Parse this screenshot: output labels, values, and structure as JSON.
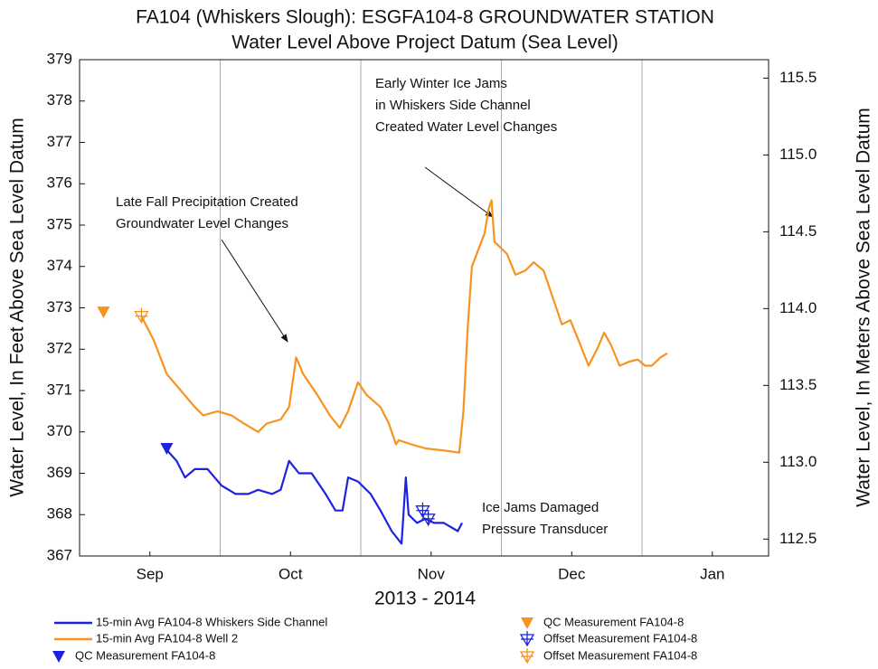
{
  "chart_data": {
    "type": "line",
    "title": "FA104 (Whiskers Slough): ESGFA104-8 GROUNDWATER STATION",
    "subtitle": "Water Level Above Project Datum (Sea Level)",
    "x_label": "2013 - 2014",
    "y_label": "Water Level, In Feet Above Sea Level Datum",
    "y2_label": "Water Level, In Meters Above Sea Level Datum",
    "xlim": [
      0,
      4.9
    ],
    "xticks": [
      {
        "value": 0.5,
        "label": "Sep"
      },
      {
        "value": 1.5,
        "label": "Oct"
      },
      {
        "value": 2.5,
        "label": "Nov"
      },
      {
        "value": 3.5,
        "label": "Dec"
      },
      {
        "value": 4.5,
        "label": "Jan"
      }
    ],
    "xgrid": [
      1,
      2,
      3,
      4
    ],
    "ylim": [
      367,
      379
    ],
    "yticks": [
      367,
      368,
      369,
      370,
      371,
      372,
      373,
      374,
      375,
      376,
      377,
      378,
      379
    ],
    "y2lim": [
      112.39,
      115.62
    ],
    "y2ticks": [
      {
        "value": 112.5,
        "label": "112.5"
      },
      {
        "value": 113.0,
        "label": "113.0"
      },
      {
        "value": 113.5,
        "label": "113.5"
      },
      {
        "value": 114.0,
        "label": "114.0"
      },
      {
        "value": 114.5,
        "label": "114.5"
      },
      {
        "value": 115.0,
        "label": "115.0"
      },
      {
        "value": 115.5,
        "label": "115.5"
      }
    ],
    "series": [
      {
        "name": "15-min Avg FA104-8 Whiskers Side Channel",
        "color": "#1c22e0",
        "marker": "line",
        "x": [
          0.61,
          0.69,
          0.75,
          0.82,
          0.91,
          1.01,
          1.11,
          1.2,
          1.27,
          1.37,
          1.43,
          1.49,
          1.56,
          1.65,
          1.75,
          1.82,
          1.87,
          1.91,
          1.98,
          2.07,
          2.14,
          2.22,
          2.29,
          2.32,
          2.34,
          2.4,
          2.46,
          2.52,
          2.59,
          2.69,
          2.72
        ],
        "values": [
          369.6,
          369.3,
          368.9,
          369.1,
          369.1,
          368.7,
          368.5,
          368.5,
          368.6,
          368.5,
          368.6,
          369.3,
          369.0,
          369.0,
          368.5,
          368.1,
          368.1,
          368.9,
          368.8,
          368.5,
          368.1,
          367.6,
          367.3,
          368.9,
          368.0,
          367.8,
          367.9,
          367.8,
          367.8,
          367.6,
          367.8
        ]
      },
      {
        "name": "15-min Avg FA104-8 Well 2",
        "color": "#f7931e",
        "marker": "line",
        "x": [
          0.44,
          0.53,
          0.62,
          0.72,
          0.82,
          0.88,
          0.98,
          1.08,
          1.17,
          1.27,
          1.33,
          1.43,
          1.49,
          1.54,
          1.59,
          1.69,
          1.78,
          1.85,
          1.91,
          1.98,
          2.04,
          2.14,
          2.2,
          2.25,
          2.27,
          2.36,
          2.46,
          2.59,
          2.7,
          2.73,
          2.76,
          2.79,
          2.88,
          2.91,
          2.93,
          2.95,
          3.04,
          3.1,
          3.17,
          3.23,
          3.3,
          3.36,
          3.43,
          3.49,
          3.55,
          3.62,
          3.68,
          3.73,
          3.78,
          3.84,
          3.91,
          3.97,
          4.02,
          4.07,
          4.13,
          4.18
        ],
        "values": [
          372.8,
          372.2,
          371.4,
          371.0,
          370.6,
          370.4,
          370.5,
          370.4,
          370.2,
          370.0,
          370.2,
          370.3,
          370.6,
          371.8,
          371.4,
          370.9,
          370.4,
          370.1,
          370.5,
          371.2,
          370.9,
          370.6,
          370.2,
          369.7,
          369.8,
          369.7,
          369.6,
          369.55,
          369.5,
          370.5,
          372.5,
          374.0,
          374.8,
          375.4,
          375.6,
          374.6,
          374.3,
          373.8,
          373.9,
          374.1,
          373.9,
          373.3,
          372.6,
          372.7,
          372.2,
          371.6,
          372.0,
          372.4,
          372.1,
          371.6,
          371.7,
          371.75,
          371.6,
          371.6,
          371.8,
          371.9
        ]
      },
      {
        "name": "QC Measurement FA104-8",
        "color": "#1c22e0",
        "marker": "triangle",
        "x": [
          0.62
        ],
        "values": [
          369.6
        ]
      },
      {
        "name": "QC Measurement FA104-8",
        "color": "#f7931e",
        "marker": "triangle",
        "x": [
          0.17
        ],
        "values": [
          372.9
        ]
      },
      {
        "name": "Offset Measurement FA104-8",
        "color": "#1c22e0",
        "marker": "offset",
        "x": [
          2.44,
          2.48
        ],
        "values": [
          368.1,
          367.9
        ]
      },
      {
        "name": "Offset Measurement FA104-8",
        "color": "#f7931e",
        "marker": "offset",
        "x": [
          0.44
        ],
        "values": [
          372.8
        ]
      }
    ],
    "annotations": [
      {
        "lines": [
          "Early Winter Ice Jams",
          "in Whiskers Side Channel",
          "Created Water Level Changes"
        ]
      },
      {
        "lines": [
          "Late Fall Precipitation Created",
          "Groundwater Level Changes"
        ]
      },
      {
        "lines": [
          "Ice Jams Damaged",
          "Pressure Transducer"
        ]
      }
    ]
  }
}
